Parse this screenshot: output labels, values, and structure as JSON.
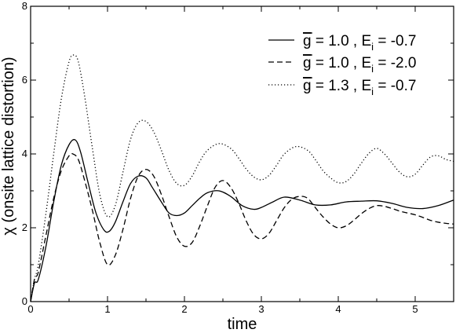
{
  "chart_data": {
    "type": "line",
    "title": "",
    "xlabel": "time",
    "ylabel": "χ (onsite lattice distortion)",
    "xlim": [
      0,
      5.5
    ],
    "ylim": [
      0,
      8
    ],
    "x_ticks": [
      "0",
      "1",
      "2",
      "3",
      "4",
      "5"
    ],
    "y_ticks": [
      "0",
      "2",
      "4",
      "6",
      "8"
    ],
    "grid": false,
    "legend_position": "top-right",
    "series": [
      {
        "name_parts": [
          "g",
          " = 1.0 , E",
          "i",
          " = -0.7"
        ],
        "style": "solid",
        "color": "#000000",
        "x": [
          0,
          0.05,
          0.1,
          0.2,
          0.3,
          0.4,
          0.5,
          0.58,
          0.65,
          0.75,
          0.85,
          0.95,
          1.02,
          1.1,
          1.2,
          1.3,
          1.4,
          1.5,
          1.58,
          1.7,
          1.8,
          1.9,
          2.0,
          2.1,
          2.2,
          2.3,
          2.45,
          2.6,
          2.75,
          2.9,
          3.0,
          3.15,
          3.3,
          3.5,
          3.7,
          3.9,
          4.1,
          4.3,
          4.5,
          4.7,
          4.9,
          5.1,
          5.3,
          5.5
        ],
        "y": [
          0,
          0.5,
          0.6,
          1.5,
          2.7,
          3.7,
          4.25,
          4.38,
          4.05,
          3.2,
          2.4,
          1.95,
          1.9,
          2.15,
          2.7,
          3.2,
          3.4,
          3.35,
          3.1,
          2.7,
          2.4,
          2.33,
          2.4,
          2.6,
          2.8,
          2.95,
          3.0,
          2.85,
          2.6,
          2.5,
          2.55,
          2.7,
          2.83,
          2.75,
          2.62,
          2.62,
          2.7,
          2.72,
          2.73,
          2.66,
          2.55,
          2.52,
          2.6,
          2.75
        ]
      },
      {
        "name_parts": [
          "g",
          " = 1.0 , E",
          "i",
          " = -2.0"
        ],
        "style": "dashed",
        "color": "#000000",
        "x": [
          0,
          0.05,
          0.1,
          0.2,
          0.3,
          0.4,
          0.5,
          0.55,
          0.62,
          0.7,
          0.8,
          0.9,
          1.0,
          1.1,
          1.2,
          1.3,
          1.4,
          1.5,
          1.6,
          1.7,
          1.8,
          1.9,
          2.0,
          2.1,
          2.2,
          2.3,
          2.4,
          2.5,
          2.6,
          2.7,
          2.8,
          2.9,
          3.0,
          3.1,
          3.2,
          3.3,
          3.4,
          3.5,
          3.6,
          3.7,
          3.8,
          3.9,
          4.0,
          4.1,
          4.2,
          4.3,
          4.4,
          4.5,
          4.6,
          4.7,
          4.8,
          4.9,
          5.0,
          5.1,
          5.2,
          5.3,
          5.4,
          5.5
        ],
        "y": [
          0,
          0.6,
          0.8,
          1.8,
          2.8,
          3.55,
          3.95,
          4.0,
          3.85,
          3.3,
          2.5,
          1.6,
          1.0,
          1.25,
          1.95,
          2.8,
          3.4,
          3.58,
          3.4,
          2.9,
          2.3,
          1.75,
          1.5,
          1.6,
          2.05,
          2.6,
          3.1,
          3.28,
          3.1,
          2.7,
          2.2,
          1.82,
          1.7,
          1.85,
          2.2,
          2.55,
          2.78,
          2.85,
          2.8,
          2.55,
          2.3,
          2.1,
          2.0,
          2.05,
          2.2,
          2.38,
          2.52,
          2.6,
          2.58,
          2.52,
          2.45,
          2.4,
          2.35,
          2.28,
          2.2,
          2.15,
          2.12,
          2.1
        ]
      },
      {
        "name_parts": [
          "g",
          " = 1.3 , E",
          "i",
          " = -0.7"
        ],
        "style": "dotted",
        "color": "#000000",
        "x": [
          0,
          0.05,
          0.1,
          0.2,
          0.3,
          0.4,
          0.5,
          0.56,
          0.62,
          0.7,
          0.8,
          0.9,
          1.0,
          1.1,
          1.2,
          1.3,
          1.4,
          1.5,
          1.6,
          1.7,
          1.8,
          1.9,
          2.0,
          2.1,
          2.2,
          2.3,
          2.45,
          2.6,
          2.7,
          2.8,
          2.9,
          3.0,
          3.1,
          3.2,
          3.3,
          3.45,
          3.6,
          3.7,
          3.8,
          3.9,
          4.0,
          4.1,
          4.2,
          4.3,
          4.4,
          4.5,
          4.6,
          4.7,
          4.8,
          4.9,
          5.0,
          5.1,
          5.2,
          5.3,
          5.4,
          5.5
        ],
        "y": [
          0,
          0.6,
          1.0,
          2.4,
          4.0,
          5.5,
          6.5,
          6.68,
          6.5,
          5.6,
          4.2,
          2.9,
          2.3,
          2.6,
          3.5,
          4.4,
          4.85,
          4.88,
          4.6,
          4.1,
          3.55,
          3.2,
          3.15,
          3.4,
          3.8,
          4.1,
          4.28,
          4.15,
          3.9,
          3.6,
          3.38,
          3.3,
          3.42,
          3.7,
          4.0,
          4.2,
          4.1,
          3.85,
          3.55,
          3.35,
          3.22,
          3.25,
          3.45,
          3.75,
          4.02,
          4.15,
          4.0,
          3.75,
          3.5,
          3.38,
          3.45,
          3.7,
          3.92,
          3.95,
          3.85,
          3.8
        ]
      }
    ]
  }
}
